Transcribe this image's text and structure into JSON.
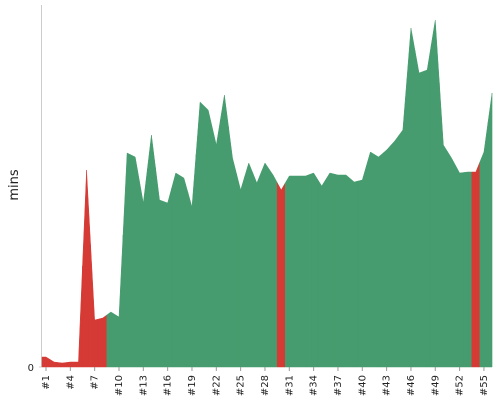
{
  "chart_data": {
    "type": "area",
    "y_label": "mins",
    "categories": [
      "#1",
      null,
      null,
      "#4",
      null,
      null,
      "#7",
      null,
      null,
      "#10",
      null,
      null,
      "#13",
      null,
      null,
      "#16",
      null,
      null,
      "#19",
      null,
      null,
      "#22",
      null,
      null,
      "#25",
      null,
      null,
      "#28",
      null,
      null,
      "#31",
      null,
      null,
      "#34",
      null,
      null,
      "#37",
      null,
      null,
      "#40",
      null,
      null,
      "#43",
      null,
      null,
      "#46",
      null,
      null,
      "#49",
      null,
      null,
      "#52",
      null,
      null,
      "#55",
      null
    ],
    "values": [
      10,
      5,
      4,
      5,
      5,
      197,
      47,
      49,
      55,
      50,
      214,
      210,
      164,
      232,
      167,
      164,
      194,
      189,
      160,
      265,
      257,
      222,
      272,
      209,
      177,
      204,
      184,
      204,
      192,
      177,
      191,
      191,
      191,
      194,
      181,
      194,
      192,
      192,
      185,
      187,
      215,
      210,
      217,
      226,
      237,
      339,
      294,
      297,
      347,
      222,
      209,
      194,
      195,
      195,
      215,
      274
    ],
    "point_colors": [
      "#d63a35",
      "#d63a35",
      "#d63a35",
      "#d63a35",
      "#d63a35",
      "#d63a35",
      "#d63a35",
      "#d63a35",
      "#469c6e",
      "#469c6e",
      "#469c6e",
      "#469c6e",
      "#469c6e",
      "#469c6e",
      "#469c6e",
      "#469c6e",
      "#469c6e",
      "#469c6e",
      "#469c6e",
      "#469c6e",
      "#469c6e",
      "#469c6e",
      "#469c6e",
      "#469c6e",
      "#469c6e",
      "#469c6e",
      "#469c6e",
      "#469c6e",
      "#469c6e",
      "#d63a35",
      "#469c6e",
      "#469c6e",
      "#469c6e",
      "#469c6e",
      "#469c6e",
      "#469c6e",
      "#469c6e",
      "#469c6e",
      "#469c6e",
      "#469c6e",
      "#469c6e",
      "#469c6e",
      "#469c6e",
      "#469c6e",
      "#469c6e",
      "#469c6e",
      "#469c6e",
      "#469c6e",
      "#469c6e",
      "#469c6e",
      "#469c6e",
      "#469c6e",
      "#469c6e",
      "#d63a35",
      "#469c6e",
      "#469c6e"
    ],
    "ylim": [
      0,
      362
    ],
    "yticks": [
      0
    ]
  }
}
